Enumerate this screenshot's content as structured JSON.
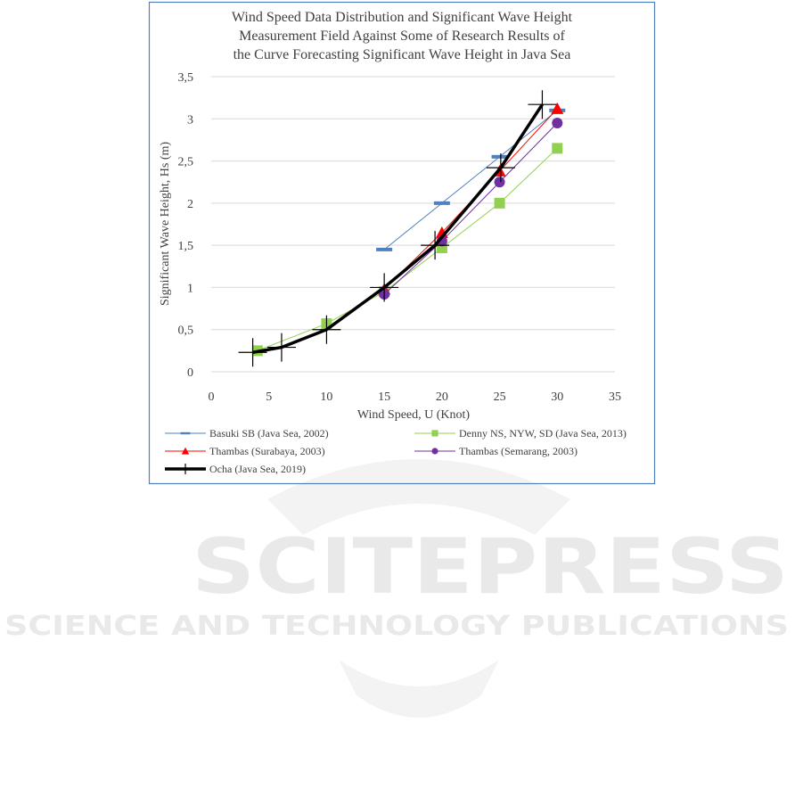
{
  "chart_data": {
    "type": "line",
    "title": [
      "Wind Speed Data Distribution and Significant Wave Height",
      "Measurement Field Against Some of Research Results of",
      "the Curve Forecasting Significant Wave Height in Java Sea"
    ],
    "x_label": "Wind Speed, U (Knot)",
    "y_label": "Significant Wave Height, Hs (m)",
    "xlim": [
      0,
      35
    ],
    "xticks": [
      0,
      5,
      10,
      15,
      20,
      25,
      30,
      35
    ],
    "ylim": [
      0,
      3.5
    ],
    "yticks": [
      0,
      {
        "value": 0.5,
        "label": "0,5"
      },
      1,
      {
        "value": 1.5,
        "label": "1,5"
      },
      2,
      {
        "value": 2.5,
        "label": "2,5"
      },
      3,
      {
        "value": 3.5,
        "label": "3,5"
      }
    ],
    "grid": true,
    "series": [
      {
        "name": "Basuki SB (Java Sea, 2002)",
        "color": "#4f81bd",
        "marker": "dash",
        "x": [
          15,
          20,
          25,
          30
        ],
        "values": [
          1.45,
          2.0,
          2.55,
          3.1
        ]
      },
      {
        "name": "Denny NS, NYW, SD (Java Sea, 2013)",
        "color": "#92d050",
        "marker": "square",
        "x": [
          4,
          10,
          15,
          20,
          25,
          30
        ],
        "values": [
          0.25,
          0.57,
          0.95,
          1.47,
          2.0,
          2.65
        ]
      },
      {
        "name": "Thambas (Surabaya, 2003)",
        "color": "#ff0000",
        "marker": "triangle",
        "x": [
          15,
          20,
          25,
          30
        ],
        "values": [
          0.98,
          1.65,
          2.38,
          3.12
        ]
      },
      {
        "name": "Thambas (Semarang, 2003)",
        "color": "#7030a0",
        "marker": "circle",
        "x": [
          15,
          20,
          25,
          30
        ],
        "values": [
          0.92,
          1.55,
          2.25,
          2.95
        ]
      },
      {
        "name": "Ocha (Java Sea, 2019)",
        "color": "#000000",
        "marker": "plus",
        "x": [
          3.6,
          6.1,
          10,
          15,
          19.4,
          25.1,
          28.7
        ],
        "values": [
          0.23,
          0.29,
          0.5,
          1.0,
          1.5,
          2.42,
          3.17
        ]
      }
    ]
  },
  "watermark": {
    "title": "SCITEPRESS",
    "subtitle": "SCIENCE AND TECHNOLOGY PUBLICATIONS"
  }
}
